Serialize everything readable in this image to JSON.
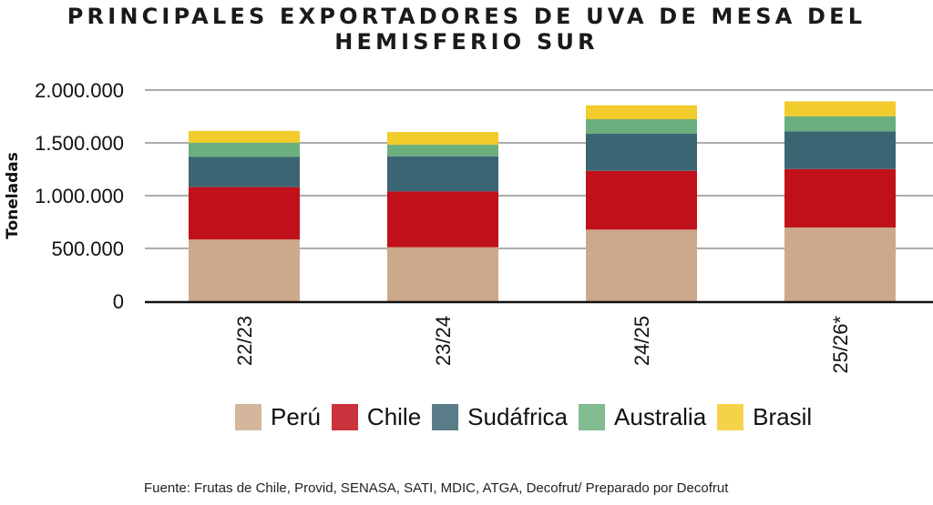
{
  "chart_data": {
    "type": "bar",
    "stacked": true,
    "title": "PRINCIPALES EXPORTADORES DE UVA DE MESA DEL HEMISFERIO SUR",
    "title_lines": [
      "PRINCIPALES EXPORTADORES DE UVA DE MESA DEL",
      "HEMISFERIO SUR"
    ],
    "xlabel": "",
    "ylabel": "Toneladas",
    "ylim": [
      0,
      2000000
    ],
    "yticks": [
      0,
      500000,
      1000000,
      1500000,
      2000000
    ],
    "ytick_labels": [
      "0",
      "500.000",
      "1.000.000",
      "1.500.000",
      "2.000.000"
    ],
    "grid": true,
    "categories": [
      "22/23",
      "23/24",
      "24/25",
      "25/26*"
    ],
    "series": [
      {
        "name": "Perú",
        "color": "#CDA98B",
        "values": [
          584000,
          511000,
          678000,
          698000
        ]
      },
      {
        "name": "Chile",
        "color": "#C0111B",
        "values": [
          497000,
          529000,
          557000,
          554000
        ]
      },
      {
        "name": "Sudáfrica",
        "color": "#3C6573",
        "values": [
          288000,
          333000,
          351000,
          357000
        ]
      },
      {
        "name": "Australia",
        "color": "#6BAF7E",
        "values": [
          132000,
          109000,
          138000,
          143000
        ]
      },
      {
        "name": "Brasil",
        "color": "#F2CB2C",
        "values": [
          112000,
          121000,
          132000,
          141000
        ]
      }
    ],
    "legend_position": "bottom",
    "source": "Fuente: Frutas de Chile, Provid, SENASA, SATI, MDIC, ATGA, Decofrut/ Preparado por Decofrut"
  }
}
